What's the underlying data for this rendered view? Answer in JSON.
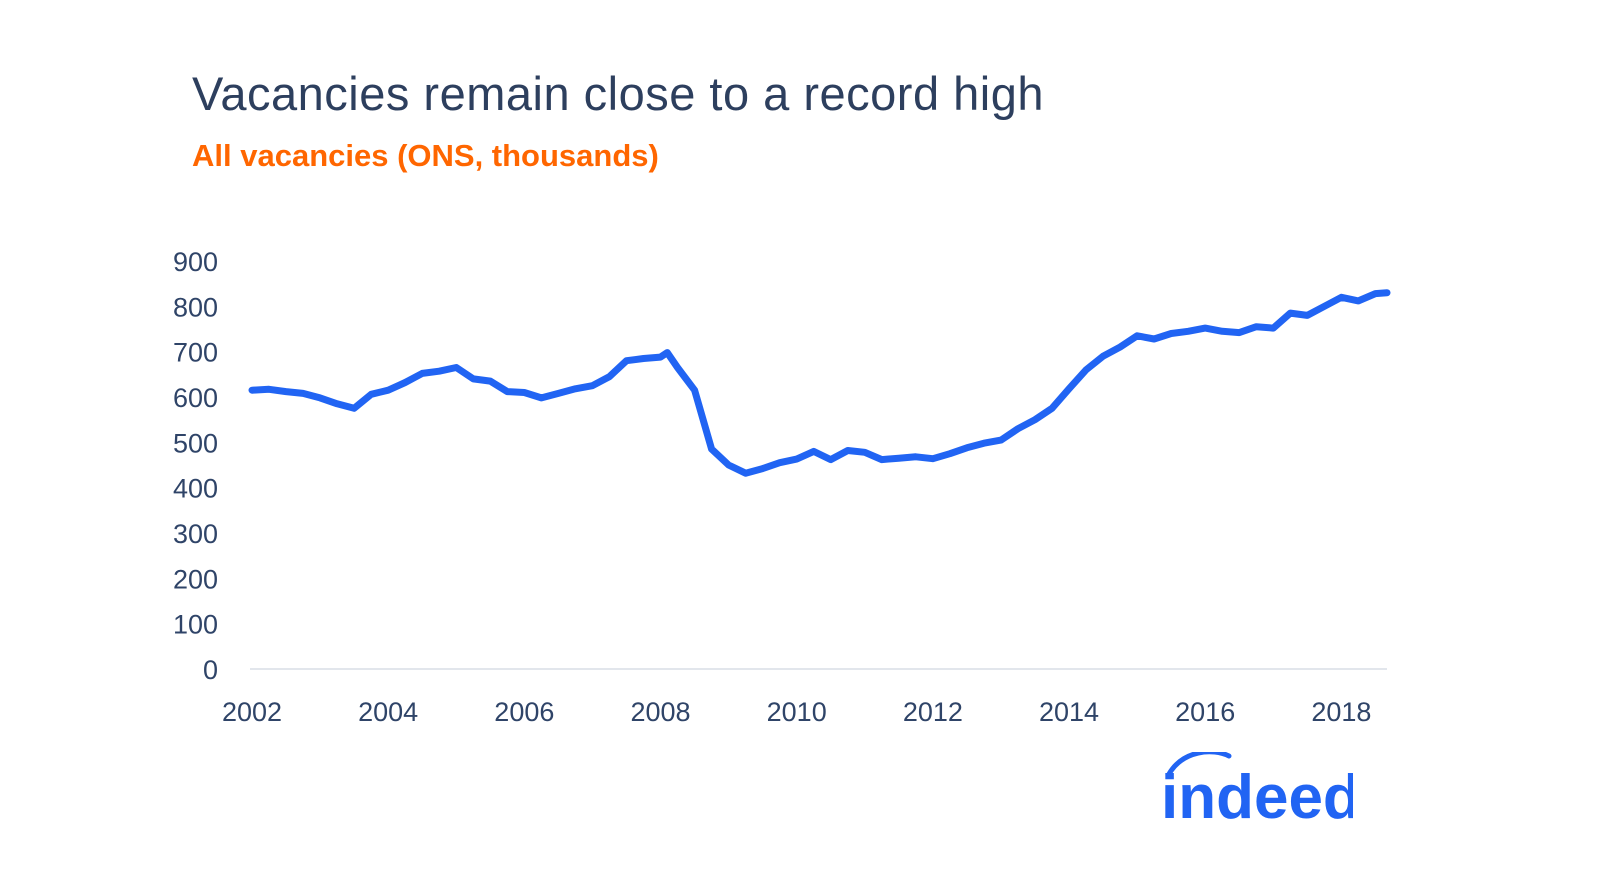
{
  "title": "Vacancies remain close to a record high",
  "subtitle": "All vacancies (ONS, thousands)",
  "logo": {
    "text": "indeed",
    "name": "indeed-logo"
  },
  "colors": {
    "line": "#2164f3",
    "title": "#2d3f5e",
    "subtitle": "#ff6600",
    "axis": "#2f4468"
  },
  "chart_data": {
    "type": "line",
    "title": "Vacancies remain close to a record high",
    "subtitle": "All vacancies (ONS, thousands)",
    "xlabel": "",
    "ylabel": "",
    "xlim": [
      2002,
      2018.67
    ],
    "ylim": [
      0,
      900
    ],
    "x_ticks": [
      2002,
      2004,
      2006,
      2008,
      2010,
      2012,
      2014,
      2016,
      2018
    ],
    "y_ticks": [
      0,
      100,
      200,
      300,
      400,
      500,
      600,
      700,
      800,
      900
    ],
    "grid": false,
    "legend": "none",
    "series": [
      {
        "x": [
          2002.0,
          2002.25,
          2002.5,
          2002.75,
          2003.0,
          2003.25,
          2003.5,
          2003.75,
          2004.0,
          2004.25,
          2004.5,
          2004.75,
          2005.0,
          2005.25,
          2005.5,
          2005.75,
          2006.0,
          2006.25,
          2006.5,
          2006.75,
          2007.0,
          2007.25,
          2007.5,
          2007.75,
          2008.0,
          2008.1,
          2008.25,
          2008.5,
          2008.75,
          2009.0,
          2009.25,
          2009.5,
          2009.75,
          2010.0,
          2010.25,
          2010.5,
          2010.75,
          2011.0,
          2011.25,
          2011.5,
          2011.75,
          2012.0,
          2012.25,
          2012.5,
          2012.75,
          2013.0,
          2013.25,
          2013.5,
          2013.75,
          2014.0,
          2014.25,
          2014.5,
          2014.75,
          2015.0,
          2015.25,
          2015.5,
          2015.75,
          2016.0,
          2016.25,
          2016.5,
          2016.75,
          2017.0,
          2017.25,
          2017.5,
          2017.75,
          2018.0,
          2018.25,
          2018.5,
          2018.67
        ],
        "values": [
          615,
          617,
          612,
          608,
          598,
          585,
          575,
          606,
          615,
          632,
          652,
          657,
          665,
          640,
          635,
          612,
          610,
          598,
          608,
          618,
          625,
          645,
          680,
          685,
          688,
          698,
          665,
          615,
          485,
          450,
          432,
          442,
          455,
          463,
          480,
          462,
          482,
          478,
          462,
          465,
          468,
          464,
          475,
          488,
          498,
          505,
          530,
          550,
          575,
          618,
          660,
          690,
          710,
          735,
          728,
          740,
          745,
          752,
          745,
          742,
          755,
          752,
          785,
          780,
          800,
          820,
          812,
          828,
          830
        ]
      }
    ]
  }
}
